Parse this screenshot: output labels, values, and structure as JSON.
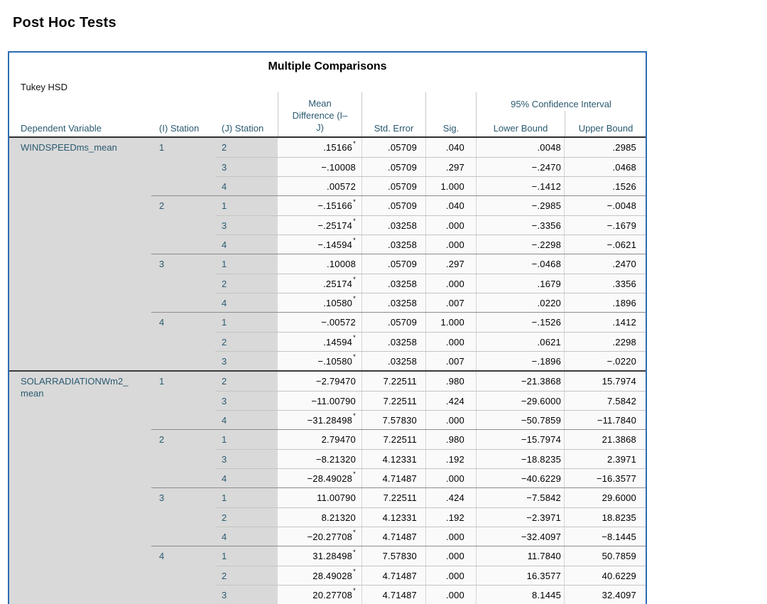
{
  "page_title": "Post Hoc Tests",
  "colors": {
    "table_selection_border": "#2c6cb5",
    "header_and_label_text": "#2a5a70",
    "label_cell_background": "#d9d9d9",
    "data_cell_background": "#fafafa",
    "data_text": "#000000"
  },
  "table": {
    "title": "Multiple Comparisons",
    "subtitle": "Tukey HSD",
    "headers": {
      "dependent_variable": "Dependent Variable",
      "i_station": "(I) Station",
      "j_station": "(J) Station",
      "mean_difference_lines": [
        "Mean",
        "Difference (I–",
        "J)"
      ],
      "std_error": "Std. Error",
      "sig": "Sig.",
      "ci_label": "95% Confidence Interval",
      "lower_bound": "Lower Bound",
      "upper_bound": "Upper Bound"
    },
    "sections": [
      {
        "label_lines": [
          "WINDSPEEDms_mean"
        ],
        "groups": [
          {
            "i": "1",
            "rows": [
              {
                "j": "2",
                "md": ".15166",
                "star": true,
                "se": ".05709",
                "sig": ".040",
                "lb": ".0048",
                "ub": ".2985"
              },
              {
                "j": "3",
                "md": "−.10008",
                "star": false,
                "se": ".05709",
                "sig": ".297",
                "lb": "−.2470",
                "ub": ".0468"
              },
              {
                "j": "4",
                "md": ".00572",
                "star": false,
                "se": ".05709",
                "sig": "1.000",
                "lb": "−.1412",
                "ub": ".1526"
              }
            ]
          },
          {
            "i": "2",
            "rows": [
              {
                "j": "1",
                "md": "−.15166",
                "star": true,
                "se": ".05709",
                "sig": ".040",
                "lb": "−.2985",
                "ub": "−.0048"
              },
              {
                "j": "3",
                "md": "−.25174",
                "star": true,
                "se": ".03258",
                "sig": ".000",
                "lb": "−.3356",
                "ub": "−.1679"
              },
              {
                "j": "4",
                "md": "−.14594",
                "star": true,
                "se": ".03258",
                "sig": ".000",
                "lb": "−.2298",
                "ub": "−.0621"
              }
            ]
          },
          {
            "i": "3",
            "rows": [
              {
                "j": "1",
                "md": ".10008",
                "star": false,
                "se": ".05709",
                "sig": ".297",
                "lb": "−.0468",
                "ub": ".2470"
              },
              {
                "j": "2",
                "md": ".25174",
                "star": true,
                "se": ".03258",
                "sig": ".000",
                "lb": ".1679",
                "ub": ".3356"
              },
              {
                "j": "4",
                "md": ".10580",
                "star": true,
                "se": ".03258",
                "sig": ".007",
                "lb": ".0220",
                "ub": ".1896"
              }
            ]
          },
          {
            "i": "4",
            "rows": [
              {
                "j": "1",
                "md": "−.00572",
                "star": false,
                "se": ".05709",
                "sig": "1.000",
                "lb": "−.1526",
                "ub": ".1412"
              },
              {
                "j": "2",
                "md": ".14594",
                "star": true,
                "se": ".03258",
                "sig": ".000",
                "lb": ".0621",
                "ub": ".2298"
              },
              {
                "j": "3",
                "md": "−.10580",
                "star": true,
                "se": ".03258",
                "sig": ".007",
                "lb": "−.1896",
                "ub": "−.0220"
              }
            ]
          }
        ]
      },
      {
        "label_lines": [
          "SOLARRADIATIONWm2_",
          "mean"
        ],
        "groups": [
          {
            "i": "1",
            "rows": [
              {
                "j": "2",
                "md": "−2.79470",
                "star": false,
                "se": "7.22511",
                "sig": ".980",
                "lb": "−21.3868",
                "ub": "15.7974"
              },
              {
                "j": "3",
                "md": "−11.00790",
                "star": false,
                "se": "7.22511",
                "sig": ".424",
                "lb": "−29.6000",
                "ub": "7.5842"
              },
              {
                "j": "4",
                "md": "−31.28498",
                "star": true,
                "se": "7.57830",
                "sig": ".000",
                "lb": "−50.7859",
                "ub": "−11.7840"
              }
            ]
          },
          {
            "i": "2",
            "rows": [
              {
                "j": "1",
                "md": "2.79470",
                "star": false,
                "se": "7.22511",
                "sig": ".980",
                "lb": "−15.7974",
                "ub": "21.3868"
              },
              {
                "j": "3",
                "md": "−8.21320",
                "star": false,
                "se": "4.12331",
                "sig": ".192",
                "lb": "−18.8235",
                "ub": "2.3971"
              },
              {
                "j": "4",
                "md": "−28.49028",
                "star": true,
                "se": "4.71487",
                "sig": ".000",
                "lb": "−40.6229",
                "ub": "−16.3577"
              }
            ]
          },
          {
            "i": "3",
            "rows": [
              {
                "j": "1",
                "md": "11.00790",
                "star": false,
                "se": "7.22511",
                "sig": ".424",
                "lb": "−7.5842",
                "ub": "29.6000"
              },
              {
                "j": "2",
                "md": "8.21320",
                "star": false,
                "se": "4.12331",
                "sig": ".192",
                "lb": "−2.3971",
                "ub": "18.8235"
              },
              {
                "j": "4",
                "md": "−20.27708",
                "star": true,
                "se": "4.71487",
                "sig": ".000",
                "lb": "−32.4097",
                "ub": "−8.1445"
              }
            ]
          },
          {
            "i": "4",
            "rows": [
              {
                "j": "1",
                "md": "31.28498",
                "star": true,
                "se": "7.57830",
                "sig": ".000",
                "lb": "11.7840",
                "ub": "50.7859"
              },
              {
                "j": "2",
                "md": "28.49028",
                "star": true,
                "se": "4.71487",
                "sig": ".000",
                "lb": "16.3577",
                "ub": "40.6229"
              },
              {
                "j": "3",
                "md": "20.27708",
                "star": true,
                "se": "4.71487",
                "sig": ".000",
                "lb": "8.1445",
                "ub": "32.4097"
              }
            ]
          }
        ]
      }
    ],
    "partial_next_row": {
      "md": "",
      "star": true,
      "se": "",
      "sig": "",
      "lb": "",
      "ub": ""
    }
  }
}
